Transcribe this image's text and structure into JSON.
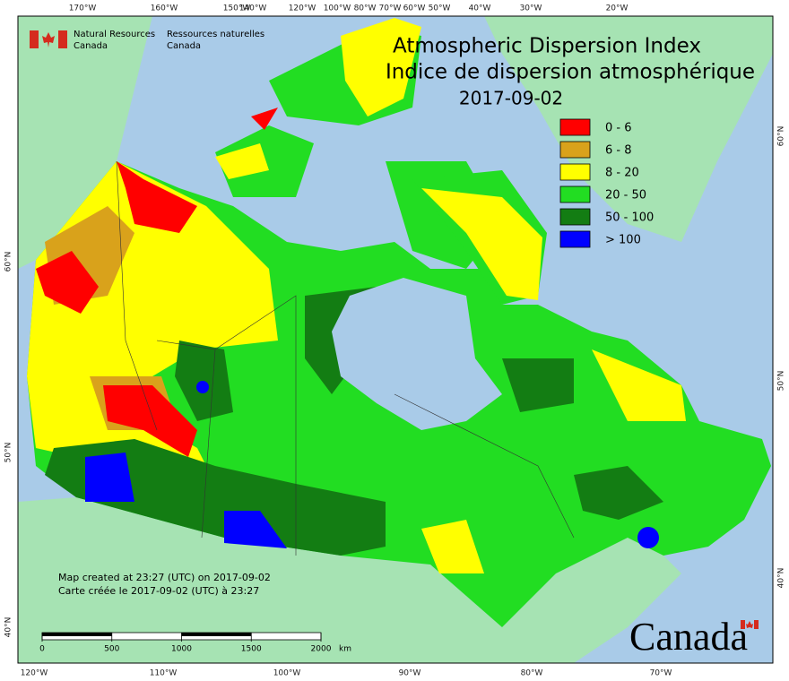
{
  "header": {
    "en": [
      "Natural Resources",
      "Canada"
    ],
    "fr": [
      "Ressources naturelles",
      "Canada"
    ]
  },
  "map": {
    "title": [
      "Atmospheric Dispersion Index",
      "Indice de dispersion atmosphérique"
    ],
    "date": "2017-09-02",
    "legend": [
      {
        "label": "0 - 6",
        "color": "#ff0000"
      },
      {
        "label": "6 - 8",
        "color": "#d9a21b"
      },
      {
        "label": "8 - 20",
        "color": "#ffff00"
      },
      {
        "label": "20 - 50",
        "color": "#22dd22"
      },
      {
        "label": "50 - 100",
        "color": "#137d13"
      },
      {
        "label": "> 100",
        "color": "#0000ff"
      }
    ],
    "notes": [
      "Map created at 23:27 (UTC) on 2017-09-02",
      "Carte créée le 2017-09-02 (UTC) à 23:27"
    ],
    "scale": {
      "ticks": [
        0,
        500,
        1000,
        1500,
        2000
      ],
      "unit": "km"
    },
    "graticule": {
      "top": [
        "170°W",
        "160°W",
        "150°W",
        "140°W",
        "120°W",
        "100°W",
        "80°W",
        "70°W",
        "60°W",
        "50°W",
        "40°W",
        "30°W",
        "20°W"
      ],
      "bottom": [
        "120°W",
        "110°W",
        "100°W",
        "90°W",
        "80°W",
        "70°W"
      ],
      "left": [
        "60°N",
        "50°N",
        "40°N"
      ],
      "right": [
        "60°N",
        "50°N",
        "40°N"
      ]
    },
    "wordmark": "Canada"
  }
}
